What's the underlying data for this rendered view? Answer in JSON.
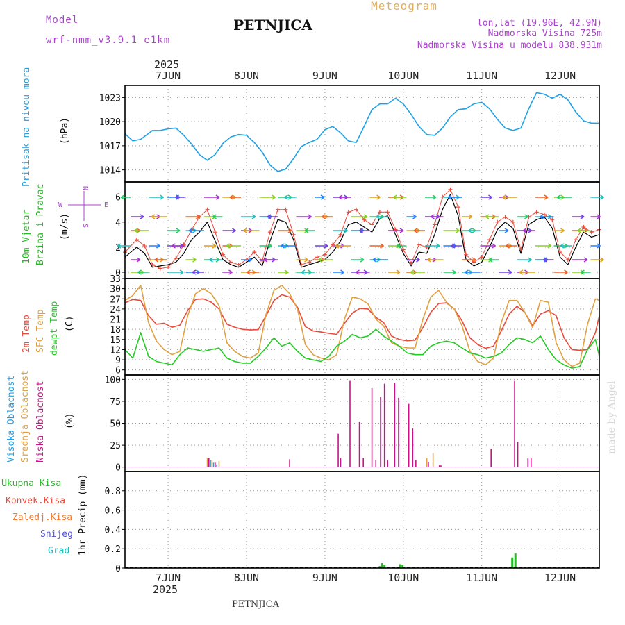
{
  "header": {
    "model_label": "Model",
    "model_name": "wrf-nmm_v3.9.1  e1km",
    "station": "PETNJICA",
    "title": "Meteogram",
    "lonlat": "lon,lat (19.96E, 42.9N)",
    "elevation": "Nadmorska Visina 725m",
    "model_elevation": "Nadmorska Visina u modelu 838.931m",
    "year_top": "2025",
    "year_bottom": "2025",
    "footer_station": "PETNJICA",
    "credit": "made by Angel"
  },
  "colors": {
    "pressure": "#1ea0e6",
    "temp": "#e84a3c",
    "sfc": "#e0a040",
    "dew": "#22cc22",
    "high_cloud": "#1ea0e6",
    "mid_cloud": "#e0a040",
    "low_cloud": "#cc1188",
    "total_precip": "#22bb22",
    "conv_precip": "#e84a3c",
    "frz_precip": "#f07830",
    "snow": "#5050e0",
    "hail": "#20c0c0",
    "wind_speed": "#000000",
    "wind_gust": "#e84a3c",
    "wind_label": "#22bb22",
    "wind_legend": "#aa44cc"
  },
  "days": [
    "7JUN",
    "8JUN",
    "9JUN",
    "10JUN",
    "11JUN",
    "12JUN"
  ],
  "panels": {
    "pressure": {
      "label": "Pritisak na nivou mora",
      "unit": "(hPa)"
    },
    "wind": {
      "label1": "10m Vjetar",
      "label2": "Brzina i Pravac",
      "unit": "(m/s)",
      "compass_n": "N",
      "compass_w": "W",
      "compass_e": "E",
      "compass_s": "S"
    },
    "temp": {
      "label1": "2m Temp",
      "label2": "SFC Temp",
      "label3": "dewpt Temp",
      "unit": "(C)"
    },
    "cloud": {
      "label1": "Visoka Oblacnost",
      "label2": "Srednja Oblacnost",
      "label3": "Niska Oblacnost",
      "unit": "(%)"
    },
    "precip": {
      "unit": "1hr Precip (mm)",
      "legend": [
        "Ukupna Kisa",
        "Konvek.Kisa",
        "Zaledj.Kisa",
        "Snijeg",
        "Grad"
      ]
    }
  },
  "chart_data": [
    {
      "type": "line",
      "name": "pressure",
      "x_unit": "days since 7 JUN 00UTC",
      "xlim": [
        -0.55,
        5.5
      ],
      "ylim": [
        1012.5,
        1024.5
      ],
      "yticks": [
        1014,
        1017,
        1020,
        1023
      ],
      "series": [
        {
          "name": "Pritisak na nivou mora",
          "x": [
            -0.55,
            -0.45,
            -0.35,
            -0.2,
            -0.1,
            0.0,
            0.1,
            0.2,
            0.3,
            0.4,
            0.5,
            0.6,
            0.7,
            0.8,
            0.9,
            1.0,
            1.1,
            1.2,
            1.3,
            1.4,
            1.5,
            1.6,
            1.7,
            1.8,
            1.9,
            2.0,
            2.1,
            2.2,
            2.3,
            2.4,
            2.5,
            2.6,
            2.7,
            2.8,
            2.9,
            3.0,
            3.1,
            3.2,
            3.3,
            3.4,
            3.5,
            3.6,
            3.7,
            3.8,
            3.9,
            4.0,
            4.1,
            4.2,
            4.3,
            4.4,
            4.5,
            4.6,
            4.7,
            4.8,
            4.9,
            5.0,
            5.1,
            5.2,
            5.3,
            5.4,
            5.5
          ],
          "y": [
            1018.5,
            1017.6,
            1017.8,
            1018.9,
            1018.9,
            1019.1,
            1019.2,
            1018.3,
            1017.2,
            1015.9,
            1015.2,
            1015.9,
            1017.3,
            1018.1,
            1018.4,
            1018.3,
            1017.4,
            1016.2,
            1014.6,
            1013.8,
            1014.1,
            1015.4,
            1016.9,
            1017.4,
            1017.8,
            1019.0,
            1019.4,
            1018.6,
            1017.6,
            1017.4,
            1019.4,
            1021.5,
            1022.2,
            1022.2,
            1022.9,
            1022.2,
            1020.9,
            1019.4,
            1018.4,
            1018.3,
            1019.2,
            1020.6,
            1021.5,
            1021.6,
            1022.2,
            1022.4,
            1021.6,
            1020.3,
            1019.2,
            1018.9,
            1019.2,
            1021.6,
            1023.6,
            1023.4,
            1022.9,
            1023.4,
            1022.7,
            1021.2,
            1020.1,
            1019.8,
            1019.8
          ]
        }
      ]
    },
    {
      "type": "line",
      "name": "wind",
      "x_unit": "days since 7 JUN 00UTC",
      "xlim": [
        -0.55,
        5.5
      ],
      "ylim": [
        -0.5,
        7.2
      ],
      "yticks": [
        0,
        2,
        4,
        6
      ],
      "series": [
        {
          "name": "wind speed",
          "x": [
            -0.55,
            -0.4,
            -0.3,
            -0.2,
            -0.1,
            0.0,
            0.1,
            0.2,
            0.3,
            0.4,
            0.5,
            0.6,
            0.7,
            0.8,
            0.9,
            1.0,
            1.1,
            1.2,
            1.3,
            1.4,
            1.5,
            1.6,
            1.7,
            1.8,
            1.9,
            2.0,
            2.1,
            2.2,
            2.3,
            2.4,
            2.5,
            2.6,
            2.7,
            2.8,
            2.9,
            3.0,
            3.1,
            3.2,
            3.3,
            3.4,
            3.5,
            3.6,
            3.7,
            3.8,
            3.9,
            4.0,
            4.1,
            4.2,
            4.3,
            4.4,
            4.5,
            4.6,
            4.7,
            4.8,
            4.9,
            5.0,
            5.1,
            5.2,
            5.3,
            5.4,
            5.5
          ],
          "y": [
            1.2,
            2.0,
            1.5,
            0.4,
            0.5,
            0.6,
            0.8,
            1.5,
            2.6,
            3.2,
            4.0,
            2.5,
            1.0,
            0.6,
            0.4,
            0.8,
            1.2,
            0.5,
            2.5,
            4.2,
            4.0,
            2.6,
            0.4,
            0.6,
            0.8,
            1.0,
            1.6,
            2.5,
            3.8,
            4.0,
            3.6,
            3.2,
            4.3,
            4.5,
            3.0,
            1.5,
            0.5,
            1.6,
            1.5,
            3.0,
            5.0,
            6.2,
            4.5,
            1.0,
            0.5,
            0.8,
            2.0,
            3.4,
            4.0,
            3.5,
            1.5,
            3.8,
            4.2,
            4.4,
            3.5,
            1.2,
            0.6,
            2.0,
            3.2,
            2.8,
            3.0
          ]
        },
        {
          "name": "wind gust",
          "x": [
            -0.55,
            -0.4,
            -0.3,
            -0.2,
            -0.1,
            0.0,
            0.1,
            0.2,
            0.3,
            0.4,
            0.5,
            0.6,
            0.7,
            0.8,
            0.9,
            1.0,
            1.1,
            1.2,
            1.3,
            1.4,
            1.5,
            1.6,
            1.7,
            1.8,
            1.9,
            2.0,
            2.1,
            2.2,
            2.3,
            2.4,
            2.5,
            2.6,
            2.7,
            2.8,
            2.9,
            3.0,
            3.1,
            3.2,
            3.3,
            3.4,
            3.5,
            3.6,
            3.7,
            3.8,
            3.9,
            4.0,
            4.1,
            4.2,
            4.3,
            4.4,
            4.5,
            4.6,
            4.7,
            4.8,
            4.9,
            5.0,
            5.1,
            5.2,
            5.3,
            5.4,
            5.5
          ],
          "y": [
            1.6,
            2.6,
            2.1,
            0.6,
            0.3,
            0.4,
            1.1,
            2.2,
            3.4,
            4.4,
            5.0,
            3.2,
            1.4,
            0.8,
            0.6,
            1.0,
            1.6,
            0.9,
            3.2,
            5.0,
            5.0,
            3.0,
            0.6,
            0.8,
            1.2,
            1.4,
            2.2,
            3.0,
            4.8,
            5.0,
            4.2,
            3.8,
            4.8,
            4.8,
            3.4,
            1.8,
            0.7,
            2.2,
            2.0,
            3.8,
            6.0,
            6.6,
            5.2,
            1.4,
            0.8,
            1.2,
            2.6,
            4.0,
            4.4,
            4.0,
            1.8,
            4.4,
            4.8,
            4.6,
            4.2,
            1.6,
            1.0,
            2.6,
            3.6,
            3.2,
            3.4
          ]
        }
      ]
    },
    {
      "type": "line",
      "name": "temperature",
      "x_unit": "days since 7 JUN 00UTC",
      "xlim": [
        -0.55,
        5.5
      ],
      "ylim": [
        4.5,
        33
      ],
      "yticks": [
        6,
        9,
        12,
        15,
        18,
        21,
        24,
        27,
        30,
        33
      ],
      "series": [
        {
          "name": "2m Temp",
          "x": [
            -0.55,
            -0.45,
            -0.35,
            -0.25,
            -0.15,
            -0.05,
            0.05,
            0.15,
            0.25,
            0.35,
            0.45,
            0.55,
            0.65,
            0.75,
            0.85,
            0.95,
            1.05,
            1.15,
            1.25,
            1.35,
            1.45,
            1.55,
            1.65,
            1.75,
            1.85,
            1.95,
            2.05,
            2.15,
            2.25,
            2.35,
            2.45,
            2.55,
            2.65,
            2.75,
            2.85,
            2.95,
            3.05,
            3.15,
            3.25,
            3.35,
            3.45,
            3.55,
            3.65,
            3.75,
            3.85,
            3.95,
            4.05,
            4.15,
            4.25,
            4.35,
            4.45,
            4.55,
            4.65,
            4.75,
            4.85,
            4.95,
            5.05,
            5.15,
            5.25,
            5.35,
            5.45,
            5.5
          ],
          "y": [
            25.8,
            26.8,
            26.5,
            22.0,
            19.5,
            19.8,
            18.6,
            19.2,
            23.5,
            26.8,
            27.0,
            26.0,
            24.0,
            19.5,
            18.6,
            18.0,
            17.8,
            17.9,
            22.0,
            26.5,
            28.2,
            27.5,
            24.5,
            18.8,
            17.5,
            17.2,
            16.8,
            16.5,
            19.8,
            22.8,
            24.2,
            24.0,
            21.5,
            20.0,
            16.0,
            15.0,
            14.6,
            14.8,
            18.5,
            23.0,
            25.6,
            25.8,
            24.0,
            20.5,
            15.5,
            13.5,
            12.4,
            13.0,
            17.5,
            22.5,
            24.8,
            23.0,
            19.0,
            22.5,
            23.5,
            22.0,
            15.5,
            12.0,
            11.8,
            12.0,
            17.0,
            22.0
          ]
        },
        {
          "name": "SFC Temp",
          "x": [
            -0.55,
            -0.45,
            -0.35,
            -0.25,
            -0.15,
            -0.05,
            0.05,
            0.15,
            0.25,
            0.35,
            0.45,
            0.55,
            0.65,
            0.75,
            0.85,
            0.95,
            1.05,
            1.15,
            1.25,
            1.35,
            1.45,
            1.55,
            1.65,
            1.75,
            1.85,
            1.95,
            2.05,
            2.15,
            2.25,
            2.35,
            2.45,
            2.55,
            2.65,
            2.75,
            2.85,
            2.95,
            3.05,
            3.15,
            3.25,
            3.35,
            3.45,
            3.55,
            3.65,
            3.75,
            3.85,
            3.95,
            4.05,
            4.15,
            4.25,
            4.35,
            4.45,
            4.55,
            4.65,
            4.75,
            4.85,
            4.95,
            5.05,
            5.15,
            5.25,
            5.35,
            5.45,
            5.5
          ],
          "y": [
            26.5,
            28.0,
            31.0,
            20.0,
            14.5,
            12.0,
            10.5,
            11.5,
            22.0,
            28.5,
            30.0,
            28.5,
            25.0,
            14.0,
            11.5,
            10.0,
            9.5,
            11.0,
            22.5,
            29.5,
            31.0,
            28.5,
            24.0,
            13.5,
            10.5,
            9.5,
            9.0,
            10.5,
            21.0,
            27.5,
            27.0,
            25.5,
            21.0,
            19.0,
            14.0,
            13.0,
            12.5,
            12.5,
            21.0,
            27.5,
            29.5,
            26.0,
            24.0,
            19.0,
            11.5,
            8.5,
            7.5,
            9.5,
            20.0,
            26.5,
            26.5,
            23.0,
            18.5,
            26.5,
            26.0,
            14.0,
            9.0,
            7.0,
            8.0,
            19.5,
            27.0,
            26.5
          ]
        },
        {
          "name": "dewpt Temp",
          "x": [
            -0.55,
            -0.45,
            -0.35,
            -0.25,
            -0.15,
            -0.05,
            0.05,
            0.15,
            0.25,
            0.35,
            0.45,
            0.55,
            0.65,
            0.75,
            0.85,
            0.95,
            1.05,
            1.15,
            1.25,
            1.35,
            1.45,
            1.55,
            1.65,
            1.75,
            1.85,
            1.95,
            2.05,
            2.15,
            2.25,
            2.35,
            2.45,
            2.55,
            2.65,
            2.75,
            2.85,
            2.95,
            3.05,
            3.15,
            3.25,
            3.35,
            3.45,
            3.55,
            3.65,
            3.75,
            3.85,
            3.95,
            4.05,
            4.15,
            4.25,
            4.35,
            4.45,
            4.55,
            4.65,
            4.75,
            4.85,
            4.95,
            5.05,
            5.15,
            5.25,
            5.35,
            5.45,
            5.5
          ],
          "y": [
            12.0,
            9.5,
            17.0,
            10.0,
            8.5,
            8.0,
            7.5,
            10.5,
            12.5,
            12.0,
            11.5,
            12.0,
            12.5,
            9.5,
            8.5,
            8.0,
            8.0,
            10.0,
            12.5,
            15.5,
            13.0,
            14.0,
            11.5,
            9.5,
            9.0,
            8.5,
            10.0,
            13.0,
            14.5,
            16.5,
            15.5,
            16.0,
            18.0,
            16.0,
            14.5,
            13.0,
            11.0,
            10.5,
            10.5,
            13.0,
            14.0,
            14.5,
            14.0,
            12.5,
            11.0,
            10.5,
            9.5,
            10.0,
            11.0,
            13.5,
            15.5,
            15.0,
            14.0,
            16.0,
            12.0,
            9.0,
            7.5,
            6.5,
            7.0,
            12.0,
            15.0,
            10.0
          ]
        }
      ]
    },
    {
      "type": "bar",
      "name": "cloud cover",
      "x_unit": "days since 7 JUN 00UTC",
      "xlim": [
        -0.55,
        5.5
      ],
      "ylim": [
        -5,
        105
      ],
      "yticks": [
        0,
        25,
        50,
        75,
        100
      ],
      "series": [
        {
          "name": "Visoka Oblacnost",
          "x": [
            0.54,
            0.58,
            0.62
          ],
          "y": [
            8,
            5,
            3
          ]
        },
        {
          "name": "Srednja Oblacnost",
          "x": [
            0.5,
            0.56,
            0.65,
            3.3,
            3.38
          ],
          "y": [
            10,
            8,
            7,
            10,
            16
          ]
        },
        {
          "name": "Niska Oblacnost",
          "x": [
            0.52,
            0.6,
            1.55,
            2.17,
            2.2,
            2.32,
            2.44,
            2.49,
            2.6,
            2.65,
            2.71,
            2.76,
            2.8,
            2.89,
            2.94,
            3.07,
            3.12,
            3.16,
            3.32,
            3.46,
            3.48,
            4.12,
            4.42,
            4.46,
            4.59,
            4.63
          ],
          "y": [
            10,
            5,
            9,
            38,
            10,
            99,
            52,
            10,
            90,
            8,
            80,
            95,
            8,
            96,
            79,
            72,
            44,
            8,
            6,
            2,
            2,
            21,
            99,
            29,
            10,
            10
          ]
        }
      ]
    },
    {
      "type": "bar",
      "name": "precipitation",
      "x_unit": "days since 7 JUN 00UTC",
      "xlim": [
        -0.55,
        5.5
      ],
      "ylim": [
        0,
        1.0
      ],
      "yticks": [
        0,
        0.2,
        0.4,
        0.6,
        0.8
      ],
      "series": [
        {
          "name": "Ukupna Kisa",
          "x": [
            2.63,
            2.7,
            2.73,
            2.76,
            2.96,
            2.99,
            4.39,
            4.43
          ],
          "y": [
            0.005,
            0.02,
            0.05,
            0.03,
            0.04,
            0.03,
            0.11,
            0.15
          ]
        },
        {
          "name": "Konvek.Kisa",
          "x": [],
          "y": []
        },
        {
          "name": "Zaledj.Kisa",
          "x": [],
          "y": []
        },
        {
          "name": "Snijeg",
          "x": [],
          "y": []
        },
        {
          "name": "Grad",
          "x": [],
          "y": []
        }
      ]
    }
  ]
}
